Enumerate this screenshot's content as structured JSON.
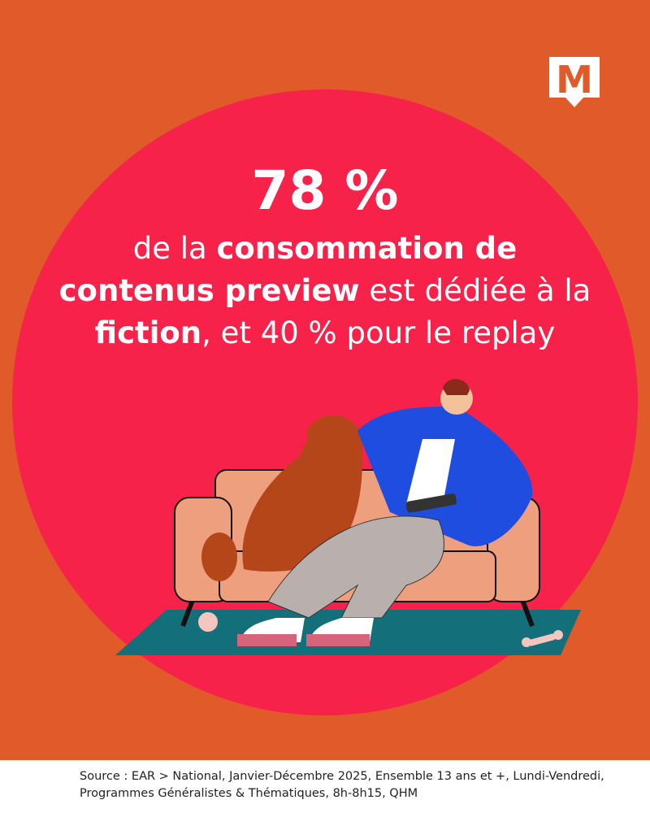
{
  "logo": {
    "letter": "M"
  },
  "headline": {
    "stat": "78 %",
    "lines": [
      [
        {
          "text": "de la ",
          "bold": false
        },
        {
          "text": "consommation de",
          "bold": true
        }
      ],
      [
        {
          "text": "contenus preview",
          "bold": true
        },
        {
          "text": " est dédiée à la",
          "bold": false
        }
      ],
      [
        {
          "text": "fiction",
          "bold": true
        },
        {
          "text": ", et 40 % pour le replay",
          "bold": false
        }
      ]
    ]
  },
  "footer": {
    "source_lines": [
      "Source : EAR > National, Janvier-Décembre 2025, Ensemble 13 ans et +, Lundi-Vendredi,",
      "Programmes Généralistes & Thématiques, 8h-8h15, QHM"
    ]
  }
}
